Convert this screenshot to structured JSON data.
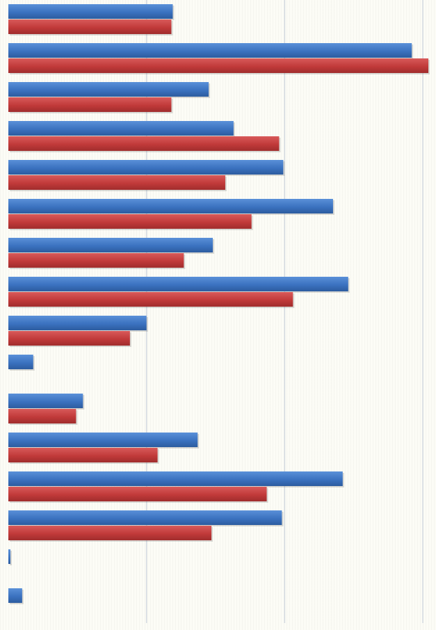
{
  "chart_data": {
    "type": "bar",
    "orientation": "horizontal",
    "categories": [
      "",
      "",
      "",
      "",
      "",
      "",
      "",
      "",
      "",
      "",
      "",
      "",
      "",
      "",
      "",
      ""
    ],
    "series": [
      {
        "color": "#3b72c0",
        "values": [
          119,
          292,
          145,
          163,
          199,
          235,
          148,
          246,
          100,
          18,
          54,
          137,
          242,
          198,
          1.5,
          10
        ]
      },
      {
        "color": "#c13a3a",
        "values": [
          118,
          304,
          118,
          196,
          157,
          176,
          127,
          206,
          88,
          0,
          49,
          108,
          187,
          147,
          0,
          0
        ]
      }
    ],
    "xlim": [
      0,
      305
    ],
    "gridlines_at": [
      100,
      200,
      300
    ],
    "grid": true,
    "legend": "none",
    "axis_labels_visible": false
  }
}
